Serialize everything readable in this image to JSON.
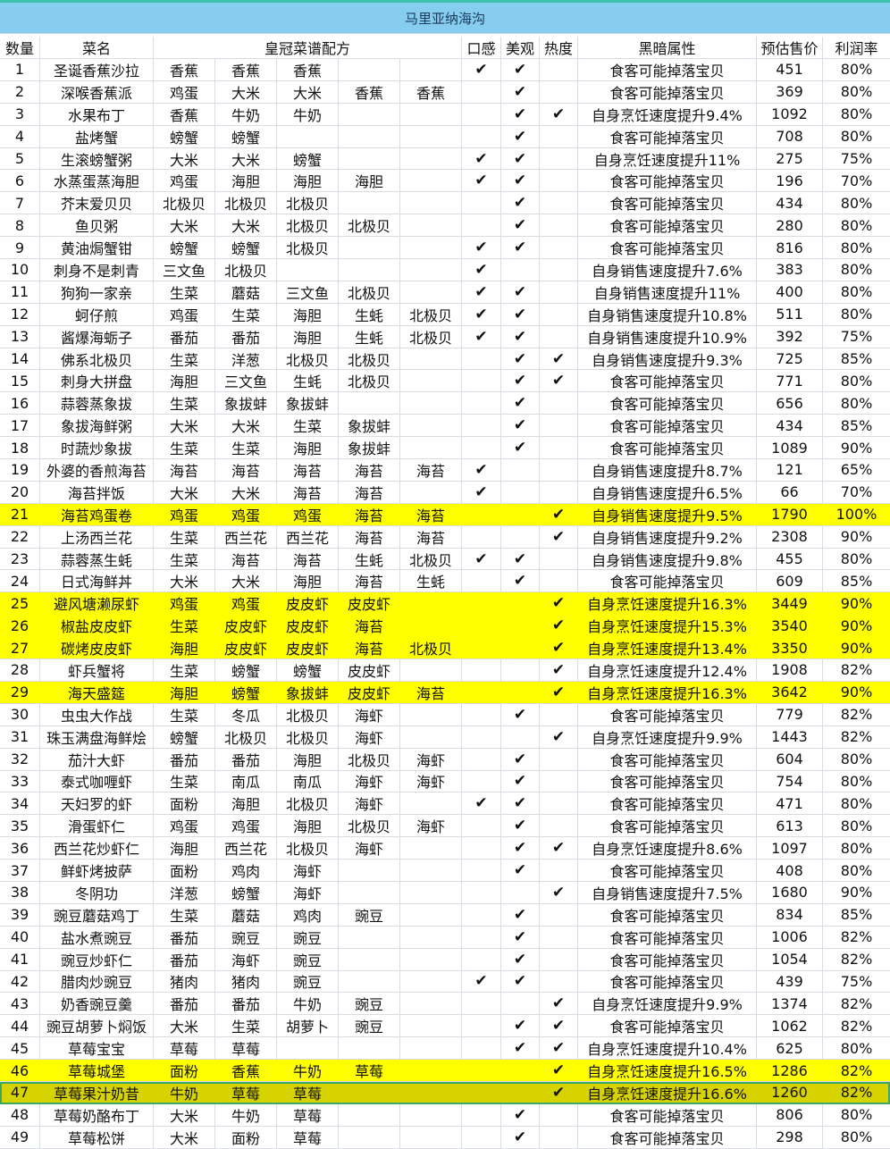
{
  "title": "马里亚纳海沟",
  "headers": {
    "num": "数量",
    "name": "菜名",
    "recipe": "皇冠菜谱配方",
    "taste": "口感",
    "look": "美观",
    "heat": "热度",
    "attr": "黑暗属性",
    "price": "预估售价",
    "margin": "利润率"
  },
  "check_glyph": "✔",
  "colors": {
    "title_bg": "#86cdef",
    "highlight": "#ffff00",
    "selected": "#d7d300",
    "selected_border": "#3aa860"
  },
  "rows": [
    {
      "n": "1",
      "name": "圣诞香蕉沙拉",
      "ing": [
        "香蕉",
        "香蕉",
        "香蕉",
        "",
        ""
      ],
      "k": true,
      "m": true,
      "h": false,
      "attr": "食客可能掉落宝贝",
      "price": "451",
      "margin": "80%"
    },
    {
      "n": "2",
      "name": "深喉香蕉派",
      "ing": [
        "鸡蛋",
        "大米",
        "大米",
        "香蕉",
        "香蕉"
      ],
      "k": false,
      "m": true,
      "h": false,
      "attr": "食客可能掉落宝贝",
      "price": "369",
      "margin": "80%"
    },
    {
      "n": "3",
      "name": "水果布丁",
      "ing": [
        "香蕉",
        "牛奶",
        "牛奶",
        "",
        ""
      ],
      "k": false,
      "m": true,
      "h": true,
      "attr": "自身烹饪速度提升9.4%",
      "price": "1092",
      "margin": "80%"
    },
    {
      "n": "4",
      "name": "盐烤蟹",
      "ing": [
        "螃蟹",
        "螃蟹",
        "",
        "",
        ""
      ],
      "k": false,
      "m": true,
      "h": false,
      "attr": "食客可能掉落宝贝",
      "price": "708",
      "margin": "80%"
    },
    {
      "n": "5",
      "name": "生滚螃蟹粥",
      "ing": [
        "大米",
        "大米",
        "螃蟹",
        "",
        ""
      ],
      "k": true,
      "m": true,
      "h": false,
      "attr": "自身烹饪速度提升11%",
      "price": "275",
      "margin": "75%"
    },
    {
      "n": "6",
      "name": "水蒸蛋蒸海胆",
      "ing": [
        "鸡蛋",
        "海胆",
        "海胆",
        "海胆",
        ""
      ],
      "k": true,
      "m": true,
      "h": false,
      "attr": "食客可能掉落宝贝",
      "price": "196",
      "margin": "70%"
    },
    {
      "n": "7",
      "name": "芥末爱贝贝",
      "ing": [
        "北极贝",
        "北极贝",
        "北极贝",
        "",
        ""
      ],
      "k": false,
      "m": true,
      "h": false,
      "attr": "食客可能掉落宝贝",
      "price": "434",
      "margin": "80%"
    },
    {
      "n": "8",
      "name": "鱼贝粥",
      "ing": [
        "大米",
        "大米",
        "北极贝",
        "北极贝",
        ""
      ],
      "k": false,
      "m": true,
      "h": false,
      "attr": "食客可能掉落宝贝",
      "price": "280",
      "margin": "80%"
    },
    {
      "n": "9",
      "name": "黄油焗蟹钳",
      "ing": [
        "螃蟹",
        "螃蟹",
        "北极贝",
        "",
        ""
      ],
      "k": true,
      "m": true,
      "h": false,
      "attr": "食客可能掉落宝贝",
      "price": "816",
      "margin": "80%"
    },
    {
      "n": "10",
      "name": "刺身不是刺青",
      "ing": [
        "三文鱼",
        "北极贝",
        "",
        "",
        ""
      ],
      "k": true,
      "m": false,
      "h": false,
      "attr": "自身销售速度提升7.6%",
      "price": "383",
      "margin": "80%"
    },
    {
      "n": "11",
      "name": "狗狗一家亲",
      "ing": [
        "生菜",
        "蘑菇",
        "三文鱼",
        "北极贝",
        ""
      ],
      "k": true,
      "m": true,
      "h": false,
      "attr": "自身销售速度提升11%",
      "price": "400",
      "margin": "80%"
    },
    {
      "n": "12",
      "name": "蚵仔煎",
      "ing": [
        "鸡蛋",
        "生菜",
        "海胆",
        "生蚝",
        "北极贝"
      ],
      "k": true,
      "m": true,
      "h": false,
      "attr": "自身销售速度提升10.8%",
      "price": "511",
      "margin": "80%"
    },
    {
      "n": "13",
      "name": "酱爆海蛎子",
      "ing": [
        "番茄",
        "番茄",
        "海胆",
        "生蚝",
        "北极贝"
      ],
      "k": true,
      "m": true,
      "h": false,
      "attr": "自身销售速度提升10.9%",
      "price": "392",
      "margin": "75%"
    },
    {
      "n": "14",
      "name": "佛系北极贝",
      "ing": [
        "生菜",
        "洋葱",
        "北极贝",
        "北极贝",
        ""
      ],
      "k": false,
      "m": true,
      "h": true,
      "attr": "自身销售速度提升9.3%",
      "price": "725",
      "margin": "85%"
    },
    {
      "n": "15",
      "name": "刺身大拼盘",
      "ing": [
        "海胆",
        "三文鱼",
        "生蚝",
        "北极贝",
        ""
      ],
      "k": false,
      "m": true,
      "h": true,
      "attr": "食客可能掉落宝贝",
      "price": "771",
      "margin": "80%"
    },
    {
      "n": "16",
      "name": "蒜蓉蒸象拔",
      "ing": [
        "生菜",
        "象拔蚌",
        "象拔蚌",
        "",
        ""
      ],
      "k": false,
      "m": true,
      "h": false,
      "attr": "食客可能掉落宝贝",
      "price": "656",
      "margin": "80%"
    },
    {
      "n": "17",
      "name": "象拔海鲜粥",
      "ing": [
        "大米",
        "大米",
        "生菜",
        "象拔蚌",
        ""
      ],
      "k": false,
      "m": true,
      "h": false,
      "attr": "食客可能掉落宝贝",
      "price": "434",
      "margin": "85%"
    },
    {
      "n": "18",
      "name": "时蔬炒象拔",
      "ing": [
        "生菜",
        "生菜",
        "海胆",
        "象拔蚌",
        ""
      ],
      "k": false,
      "m": true,
      "h": false,
      "attr": "食客可能掉落宝贝",
      "price": "1089",
      "margin": "90%"
    },
    {
      "n": "19",
      "name": "外婆的香煎海苔",
      "ing": [
        "海苔",
        "海苔",
        "海苔",
        "海苔",
        "海苔"
      ],
      "k": true,
      "m": false,
      "h": false,
      "attr": "自身销售速度提升8.7%",
      "price": "121",
      "margin": "65%"
    },
    {
      "n": "20",
      "name": "海苔拌饭",
      "ing": [
        "大米",
        "大米",
        "海苔",
        "海苔",
        ""
      ],
      "k": true,
      "m": false,
      "h": false,
      "attr": "自身销售速度提升6.5%",
      "price": "66",
      "margin": "70%"
    },
    {
      "n": "21",
      "name": "海苔鸡蛋卷",
      "ing": [
        "鸡蛋",
        "鸡蛋",
        "鸡蛋",
        "海苔",
        "海苔"
      ],
      "k": false,
      "m": false,
      "h": true,
      "attr": "自身销售速度提升9.5%",
      "price": "1790",
      "margin": "100%",
      "hl": "y"
    },
    {
      "n": "22",
      "name": "上汤西兰花",
      "ing": [
        "生菜",
        "西兰花",
        "西兰花",
        "海苔",
        "海苔"
      ],
      "k": false,
      "m": false,
      "h": true,
      "attr": "自身销售速度提升9.2%",
      "price": "2308",
      "margin": "90%"
    },
    {
      "n": "23",
      "name": "蒜蓉蒸生蚝",
      "ing": [
        "生菜",
        "海苔",
        "海苔",
        "生蚝",
        "北极贝"
      ],
      "k": true,
      "m": true,
      "h": false,
      "attr": "自身销售速度提升9.8%",
      "price": "455",
      "margin": "80%"
    },
    {
      "n": "24",
      "name": "日式海鲜丼",
      "ing": [
        "大米",
        "大米",
        "海胆",
        "海苔",
        "生蚝"
      ],
      "k": false,
      "m": true,
      "h": false,
      "attr": "食客可能掉落宝贝",
      "price": "609",
      "margin": "85%"
    },
    {
      "n": "25",
      "name": "避风塘濑尿虾",
      "ing": [
        "鸡蛋",
        "鸡蛋",
        "皮皮虾",
        "皮皮虾",
        ""
      ],
      "k": false,
      "m": false,
      "h": true,
      "attr": "自身烹饪速度提升16.3%",
      "price": "3449",
      "margin": "90%",
      "hl": "y",
      "merge": true
    },
    {
      "n": "26",
      "name": "椒盐皮皮虾",
      "ing": [
        "生菜",
        "皮皮虾",
        "皮皮虾",
        "海苔",
        ""
      ],
      "k": false,
      "m": false,
      "h": true,
      "attr": "自身烹饪速度提升15.3%",
      "price": "3540",
      "margin": "90%",
      "hl": "y",
      "merge": true
    },
    {
      "n": "27",
      "name": "碳烤皮皮虾",
      "ing": [
        "海胆",
        "皮皮虾",
        "皮皮虾",
        "海苔",
        "北极贝"
      ],
      "k": false,
      "m": false,
      "h": true,
      "attr": "自身烹饪速度提升13.4%",
      "price": "3350",
      "margin": "90%",
      "hl": "y"
    },
    {
      "n": "28",
      "name": "虾兵蟹将",
      "ing": [
        "生菜",
        "螃蟹",
        "螃蟹",
        "皮皮虾",
        ""
      ],
      "k": false,
      "m": false,
      "h": true,
      "attr": "自身烹饪速度提升12.4%",
      "price": "1908",
      "margin": "82%"
    },
    {
      "n": "29",
      "name": "海天盛筵",
      "ing": [
        "海胆",
        "螃蟹",
        "象拔蚌",
        "皮皮虾",
        "海苔"
      ],
      "k": false,
      "m": false,
      "h": true,
      "attr": "自身烹饪速度提升16.3%",
      "price": "3642",
      "margin": "90%",
      "hl": "y"
    },
    {
      "n": "30",
      "name": "虫虫大作战",
      "ing": [
        "生菜",
        "冬瓜",
        "北极贝",
        "海虾",
        ""
      ],
      "k": false,
      "m": true,
      "h": false,
      "attr": "食客可能掉落宝贝",
      "price": "779",
      "margin": "82%"
    },
    {
      "n": "31",
      "name": "珠玉满盘海鲜烩",
      "ing": [
        "螃蟹",
        "北极贝",
        "北极贝",
        "海虾",
        ""
      ],
      "k": false,
      "m": false,
      "h": true,
      "attr": "自身烹饪速度提升9.9%",
      "price": "1443",
      "margin": "82%"
    },
    {
      "n": "32",
      "name": "茄汁大虾",
      "ing": [
        "番茄",
        "番茄",
        "海胆",
        "北极贝",
        "海虾"
      ],
      "k": false,
      "m": true,
      "h": false,
      "attr": "食客可能掉落宝贝",
      "price": "604",
      "margin": "80%"
    },
    {
      "n": "33",
      "name": "泰式咖喱虾",
      "ing": [
        "生菜",
        "南瓜",
        "南瓜",
        "海虾",
        "海虾"
      ],
      "k": false,
      "m": true,
      "h": false,
      "attr": "食客可能掉落宝贝",
      "price": "754",
      "margin": "80%"
    },
    {
      "n": "34",
      "name": "天妇罗的虾",
      "ing": [
        "面粉",
        "海胆",
        "北极贝",
        "海虾",
        ""
      ],
      "k": true,
      "m": true,
      "h": false,
      "attr": "食客可能掉落宝贝",
      "price": "471",
      "margin": "80%"
    },
    {
      "n": "35",
      "name": "滑蛋虾仁",
      "ing": [
        "鸡蛋",
        "鸡蛋",
        "海胆",
        "北极贝",
        "海虾"
      ],
      "k": false,
      "m": true,
      "h": false,
      "attr": "食客可能掉落宝贝",
      "price": "613",
      "margin": "80%"
    },
    {
      "n": "36",
      "name": "西兰花炒虾仁",
      "ing": [
        "海胆",
        "西兰花",
        "北极贝",
        "海虾",
        ""
      ],
      "k": false,
      "m": true,
      "h": true,
      "attr": "自身烹饪速度提升8.6%",
      "price": "1097",
      "margin": "80%"
    },
    {
      "n": "37",
      "name": "鲜虾烤披萨",
      "ing": [
        "面粉",
        "鸡肉",
        "海虾",
        "",
        ""
      ],
      "k": false,
      "m": true,
      "h": false,
      "attr": "食客可能掉落宝贝",
      "price": "408",
      "margin": "80%"
    },
    {
      "n": "38",
      "name": "冬阴功",
      "ing": [
        "洋葱",
        "螃蟹",
        "海虾",
        "",
        ""
      ],
      "k": false,
      "m": false,
      "h": true,
      "attr": "自身销售速度提升7.5%",
      "price": "1680",
      "margin": "90%"
    },
    {
      "n": "39",
      "name": "豌豆蘑菇鸡丁",
      "ing": [
        "生菜",
        "蘑菇",
        "鸡肉",
        "豌豆",
        ""
      ],
      "k": false,
      "m": true,
      "h": false,
      "attr": "食客可能掉落宝贝",
      "price": "834",
      "margin": "85%"
    },
    {
      "n": "40",
      "name": "盐水煮豌豆",
      "ing": [
        "番茄",
        "豌豆",
        "豌豆",
        "",
        ""
      ],
      "k": false,
      "m": true,
      "h": false,
      "attr": "食客可能掉落宝贝",
      "price": "1006",
      "margin": "82%"
    },
    {
      "n": "41",
      "name": "豌豆炒虾仁",
      "ing": [
        "番茄",
        "海虾",
        "豌豆",
        "",
        ""
      ],
      "k": false,
      "m": true,
      "h": false,
      "attr": "食客可能掉落宝贝",
      "price": "1054",
      "margin": "82%"
    },
    {
      "n": "42",
      "name": "腊肉炒豌豆",
      "ing": [
        "猪肉",
        "猪肉",
        "豌豆",
        "",
        ""
      ],
      "k": true,
      "m": true,
      "h": false,
      "attr": "食客可能掉落宝贝",
      "price": "439",
      "margin": "75%"
    },
    {
      "n": "43",
      "name": "奶香豌豆羹",
      "ing": [
        "番茄",
        "番茄",
        "牛奶",
        "豌豆",
        ""
      ],
      "k": false,
      "m": false,
      "h": true,
      "attr": "自身烹饪速度提升9.9%",
      "price": "1374",
      "margin": "82%"
    },
    {
      "n": "44",
      "name": "豌豆胡萝卜焖饭",
      "ing": [
        "大米",
        "生菜",
        "胡萝卜",
        "豌豆",
        ""
      ],
      "k": false,
      "m": true,
      "h": true,
      "attr": "食客可能掉落宝贝",
      "price": "1062",
      "margin": "82%"
    },
    {
      "n": "45",
      "name": "草莓宝宝",
      "ing": [
        "草莓",
        "草莓",
        "",
        "",
        ""
      ],
      "k": false,
      "m": true,
      "h": true,
      "attr": "自身烹饪速度提升10.4%",
      "price": "625",
      "margin": "80%"
    },
    {
      "n": "46",
      "name": "草莓城堡",
      "ing": [
        "面粉",
        "香蕉",
        "牛奶",
        "草莓",
        ""
      ],
      "k": false,
      "m": false,
      "h": true,
      "attr": "自身烹饪速度提升16.5%",
      "price": "1286",
      "margin": "82%",
      "hl": "y"
    },
    {
      "n": "47",
      "name": "草莓果汁奶昔",
      "ing": [
        "牛奶",
        "草莓",
        "草莓",
        "",
        ""
      ],
      "k": false,
      "m": false,
      "h": true,
      "attr": "自身烹饪速度提升16.6%",
      "price": "1260",
      "margin": "82%",
      "hl": "sel"
    },
    {
      "n": "48",
      "name": "草莓奶酪布丁",
      "ing": [
        "大米",
        "牛奶",
        "草莓",
        "",
        ""
      ],
      "k": false,
      "m": true,
      "h": false,
      "attr": "食客可能掉落宝贝",
      "price": "806",
      "margin": "80%"
    },
    {
      "n": "49",
      "name": "草莓松饼",
      "ing": [
        "大米",
        "面粉",
        "草莓",
        "",
        ""
      ],
      "k": false,
      "m": true,
      "h": false,
      "attr": "食客可能掉落宝贝",
      "price": "298",
      "margin": "80%"
    }
  ]
}
